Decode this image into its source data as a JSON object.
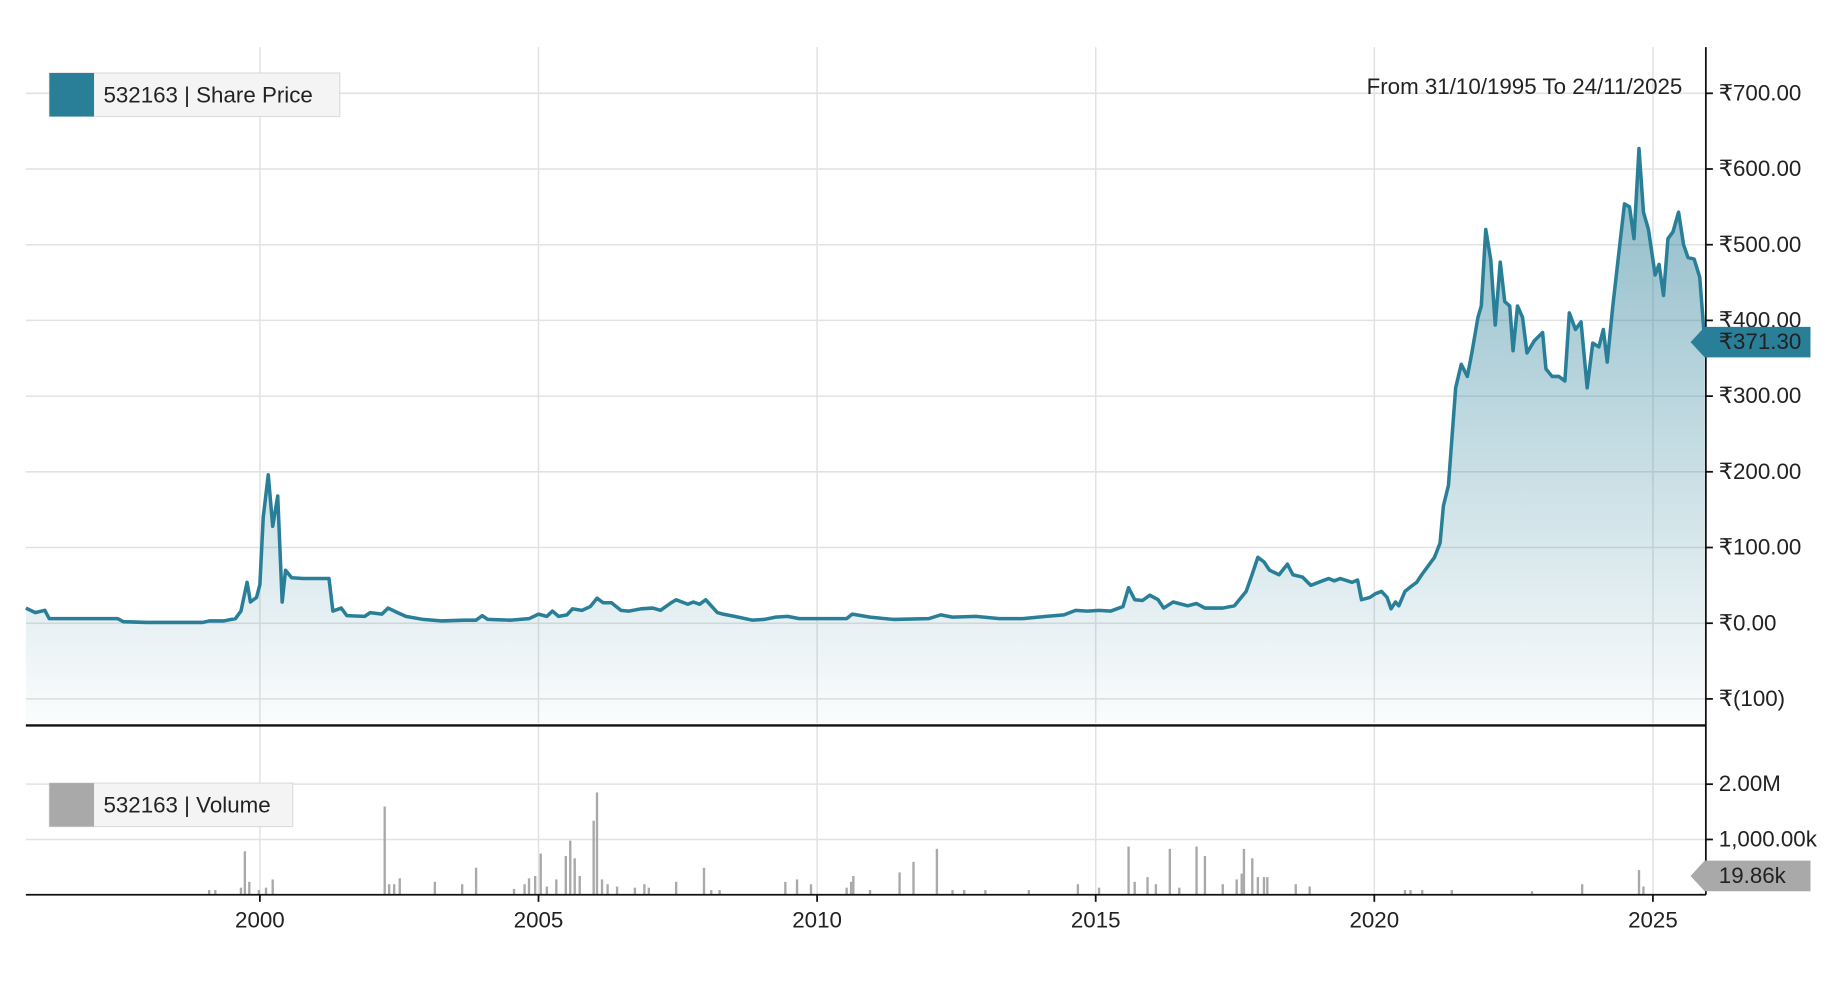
{
  "chart_data": [
    {
      "type": "area",
      "subtitle": "From 31/10/1995 To 24/11/2025",
      "x": [
        1995.8,
        1995.97,
        1996.14,
        1996.22,
        1997.45,
        1997.55,
        1997.97,
        1998.5,
        1998.97,
        1999.09,
        1999.35,
        1999.56,
        1999.66,
        1999.77,
        1999.83,
        1999.94,
        2000.0,
        2000.06,
        2000.15,
        2000.23,
        2000.32,
        2000.4,
        2000.46,
        2000.57,
        2000.78,
        2001.24,
        2001.31,
        2001.46,
        2001.56,
        2001.88,
        2001.98,
        2002.19,
        2002.3,
        2002.47,
        2002.62,
        2002.93,
        2003.25,
        2003.67,
        2003.88,
        2003.99,
        2004.09,
        2004.51,
        2004.83,
        2005.0,
        2005.15,
        2005.25,
        2005.36,
        2005.51,
        2005.61,
        2005.78,
        2005.93,
        2006.05,
        2006.16,
        2006.31,
        2006.48,
        2006.62,
        2006.84,
        2007.05,
        2007.19,
        2007.36,
        2007.47,
        2007.68,
        2007.78,
        2007.89,
        2008.0,
        2008.21,
        2008.31,
        2008.52,
        2008.84,
        2009.05,
        2009.26,
        2009.47,
        2009.68,
        2010.11,
        2010.53,
        2010.63,
        2010.95,
        2011.37,
        2012.0,
        2012.22,
        2012.43,
        2012.85,
        2013.27,
        2013.69,
        2014.11,
        2014.43,
        2014.64,
        2014.85,
        2015.06,
        2015.27,
        2015.49,
        2015.59,
        2015.7,
        2015.84,
        2015.97,
        2016.12,
        2016.22,
        2016.39,
        2016.65,
        2016.81,
        2016.96,
        2017.28,
        2017.49,
        2017.7,
        2017.81,
        2017.91,
        2018.02,
        2018.12,
        2018.29,
        2018.44,
        2018.54,
        2018.71,
        2018.86,
        2019.07,
        2019.18,
        2019.28,
        2019.39,
        2019.6,
        2019.7,
        2019.77,
        2019.92,
        2020.02,
        2020.13,
        2020.23,
        2020.3,
        2020.38,
        2020.44,
        2020.55,
        2020.65,
        2020.76,
        2020.86,
        2020.97,
        2021.08,
        2021.18,
        2021.24,
        2021.33,
        2021.46,
        2021.56,
        2021.67,
        2021.75,
        2021.86,
        2021.92,
        2022.0,
        2022.09,
        2022.17,
        2022.26,
        2022.34,
        2022.43,
        2022.49,
        2022.57,
        2022.66,
        2022.74,
        2022.87,
        2023.02,
        2023.08,
        2023.19,
        2023.31,
        2023.42,
        2023.5,
        2023.61,
        2023.71,
        2023.82,
        2023.92,
        2024.03,
        2024.11,
        2024.18,
        2024.28,
        2024.41,
        2024.49,
        2024.58,
        2024.66,
        2024.75,
        2024.83,
        2024.92,
        2025.04,
        2025.11,
        2025.19,
        2025.27,
        2025.36,
        2025.46,
        2025.55,
        2025.63,
        2025.74,
        2025.84,
        2025.93
      ],
      "series": [
        {
          "name": "532163 | Share Price",
          "color": "#2a7f98",
          "values": [
            20,
            14,
            17,
            6,
            6,
            2,
            1,
            1,
            1,
            3,
            3,
            6,
            16,
            54,
            28,
            34,
            51,
            140,
            196,
            128,
            168,
            28,
            70,
            60,
            59,
            59,
            16,
            20,
            10,
            9,
            14,
            12,
            20,
            14,
            9,
            5,
            3,
            4,
            4,
            10,
            5,
            4,
            6,
            12,
            9,
            16,
            9,
            11,
            19,
            17,
            22,
            33,
            27,
            27,
            17,
            16,
            19,
            20,
            17,
            26,
            31,
            25,
            28,
            25,
            31,
            14,
            12,
            9,
            4,
            5,
            8,
            9,
            6,
            6,
            6,
            12,
            8,
            5,
            6,
            11,
            8,
            9,
            6,
            6,
            9,
            11,
            17,
            16,
            17,
            16,
            22,
            47,
            31,
            30,
            37,
            31,
            20,
            28,
            23,
            26,
            20,
            20,
            23,
            42,
            65,
            87,
            81,
            70,
            64,
            78,
            64,
            61,
            50,
            56,
            59,
            56,
            59,
            54,
            57,
            31,
            34,
            39,
            42,
            34,
            19,
            28,
            23,
            42,
            48,
            54,
            65,
            76,
            87,
            106,
            155,
            182,
            311,
            342,
            326,
            357,
            404,
            419,
            520,
            480,
            394,
            477,
            425,
            419,
            360,
            419,
            404,
            357,
            373,
            384,
            336,
            326,
            326,
            320,
            410,
            388,
            398,
            311,
            370,
            365,
            388,
            345,
            419,
            503,
            554,
            550,
            508,
            627,
            543,
            520,
            460,
            474,
            433,
            508,
            517,
            543,
            500,
            483,
            481,
            457,
            371.3
          ],
          "current": {
            "value": 371.3,
            "label": "₹371.30"
          }
        }
      ],
      "xlim": [
        1995.8,
        2025.95
      ],
      "xticks": [
        2000,
        2005,
        2010,
        2015,
        2020,
        2025
      ],
      "ylim": [
        -132,
        761
      ],
      "yticks": [
        {
          "value": -100,
          "label": "₹(100)"
        },
        {
          "value": 0,
          "label": "₹0.00"
        },
        {
          "value": 100,
          "label": "₹100.00"
        },
        {
          "value": 200,
          "label": "₹200.00"
        },
        {
          "value": 300,
          "label": "₹300.00"
        },
        {
          "value": 400,
          "label": "₹400.00"
        },
        {
          "value": 500,
          "label": "₹500.00"
        },
        {
          "value": 600,
          "label": "₹600.00"
        },
        {
          "value": 700,
          "label": "₹700.00"
        }
      ],
      "grid": true
    },
    {
      "type": "bar",
      "x": [
        1999.09,
        1999.2,
        1999.66,
        1999.73,
        1999.81,
        1999.98,
        2000.11,
        2000.23,
        2002.24,
        2002.32,
        2002.41,
        2002.51,
        2003.14,
        2003.63,
        2003.88,
        2004.56,
        2004.75,
        2004.83,
        2004.94,
        2005.04,
        2005.15,
        2005.32,
        2005.49,
        2005.57,
        2005.65,
        2005.74,
        2005.99,
        2006.05,
        2006.14,
        2006.24,
        2006.41,
        2006.73,
        2006.9,
        2006.98,
        2007.47,
        2007.97,
        2008.1,
        2008.25,
        2009.43,
        2009.64,
        2009.89,
        2010.53,
        2010.61,
        2010.65,
        2010.95,
        2011.48,
        2011.73,
        2012.15,
        2012.43,
        2012.64,
        2013.02,
        2013.8,
        2014.68,
        2015.06,
        2015.59,
        2015.7,
        2015.93,
        2016.08,
        2016.33,
        2016.5,
        2016.81,
        2016.96,
        2017.28,
        2017.53,
        2017.62,
        2017.66,
        2017.81,
        2017.91,
        2018.02,
        2018.08,
        2018.59,
        2018.84,
        2020.55,
        2020.65,
        2020.86,
        2021.39,
        2022.83,
        2023.73,
        2024.75,
        2024.83,
        2025.86
      ],
      "series": [
        {
          "name": "532163 | Volume",
          "color": "#a9a9a9",
          "values": [
            85000,
            85000,
            128000,
            787000,
            234000,
            85000,
            128000,
            277000,
            1596000,
            191000,
            191000,
            298000,
            234000,
            191000,
            489000,
            106000,
            191000,
            298000,
            340000,
            745000,
            149000,
            277000,
            702000,
            979000,
            660000,
            340000,
            1340000,
            1851000,
            277000,
            191000,
            149000,
            128000,
            191000,
            128000,
            234000,
            489000,
            85000,
            85000,
            234000,
            277000,
            191000,
            128000,
            234000,
            340000,
            85000,
            404000,
            596000,
            830000,
            85000,
            85000,
            85000,
            85000,
            191000,
            128000,
            872000,
            234000,
            319000,
            191000,
            830000,
            128000,
            872000,
            702000,
            191000,
            277000,
            383000,
            830000,
            660000,
            319000,
            319000,
            319000,
            191000,
            149000,
            85000,
            85000,
            85000,
            85000,
            64000,
            191000,
            447000,
            149000,
            19860
          ],
          "current": {
            "value": 19860,
            "label": "19.86k"
          }
        }
      ],
      "xlim": [
        1995.8,
        2025.95
      ],
      "xticks": [
        2000,
        2005,
        2010,
        2015,
        2020,
        2025
      ],
      "ylim": [
        0,
        3040000
      ],
      "yticks": [
        {
          "value": 1000000,
          "label": "1,000.00k"
        },
        {
          "value": 2000000,
          "label": "2.00M"
        }
      ],
      "grid": true
    }
  ]
}
